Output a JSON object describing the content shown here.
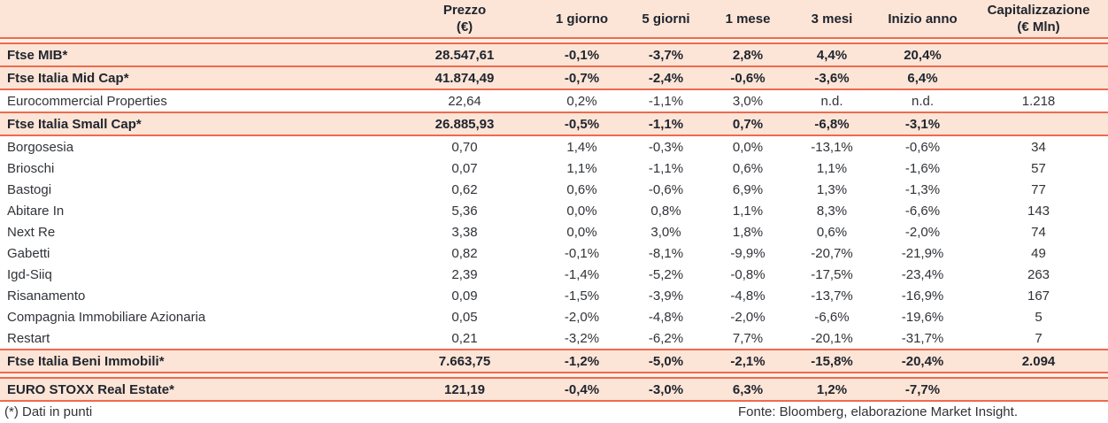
{
  "colors": {
    "accent_line": "#ef6a4e",
    "highlight_bg": "#fce5d7",
    "text": "#303338"
  },
  "header": {
    "name": "",
    "prezzo_line1": "Prezzo",
    "prezzo_line2": "(€)",
    "d1": "1 giorno",
    "d5": "5 giorni",
    "m1": "1 mese",
    "m3": "3 mesi",
    "ytd": "Inizio anno",
    "cap_line1": "Capitalizzazione",
    "cap_line2": "(€ Mln)"
  },
  "rows": [
    {
      "name": "Ftse MIB*",
      "highlight": true,
      "prezzo": "28.547,61",
      "d1": "-0,1%",
      "d5": "-3,7%",
      "m1": "2,8%",
      "m3": "4,4%",
      "ytd": "20,4%",
      "cap": ""
    },
    {
      "name": "Ftse Italia Mid Cap*",
      "highlight": true,
      "prezzo": "41.874,49",
      "d1": "-0,7%",
      "d5": "-2,4%",
      "m1": "-0,6%",
      "m3": "-3,6%",
      "ytd": "6,4%",
      "cap": ""
    },
    {
      "name": "Eurocommercial Properties",
      "highlight": false,
      "prezzo": "22,64",
      "d1": "0,2%",
      "d5": "-1,1%",
      "m1": "3,0%",
      "m3": "n.d.",
      "ytd": "n.d.",
      "cap": "1.218"
    },
    {
      "name": "Ftse Italia Small Cap*",
      "highlight": true,
      "prezzo": "26.885,93",
      "d1": "-0,5%",
      "d5": "-1,1%",
      "m1": "0,7%",
      "m3": "-6,8%",
      "ytd": "-3,1%",
      "cap": ""
    },
    {
      "name": "Borgosesia",
      "highlight": false,
      "prezzo": "0,70",
      "d1": "1,4%",
      "d5": "-0,3%",
      "m1": "0,0%",
      "m3": "-13,1%",
      "ytd": "-0,6%",
      "cap": "34"
    },
    {
      "name": "Brioschi",
      "highlight": false,
      "prezzo": "0,07",
      "d1": "1,1%",
      "d5": "-1,1%",
      "m1": "0,6%",
      "m3": "1,1%",
      "ytd": "-1,6%",
      "cap": "57"
    },
    {
      "name": "Bastogi",
      "highlight": false,
      "prezzo": "0,62",
      "d1": "0,6%",
      "d5": "-0,6%",
      "m1": "6,9%",
      "m3": "1,3%",
      "ytd": "-1,3%",
      "cap": "77"
    },
    {
      "name": "Abitare In",
      "highlight": false,
      "prezzo": "5,36",
      "d1": "0,0%",
      "d5": "0,8%",
      "m1": "1,1%",
      "m3": "8,3%",
      "ytd": "-6,6%",
      "cap": "143"
    },
    {
      "name": "Next Re",
      "highlight": false,
      "prezzo": "3,38",
      "d1": "0,0%",
      "d5": "3,0%",
      "m1": "1,8%",
      "m3": "0,6%",
      "ytd": "-2,0%",
      "cap": "74"
    },
    {
      "name": "Gabetti",
      "highlight": false,
      "prezzo": "0,82",
      "d1": "-0,1%",
      "d5": "-8,1%",
      "m1": "-9,9%",
      "m3": "-20,7%",
      "ytd": "-21,9%",
      "cap": "49"
    },
    {
      "name": "Igd-Siiq",
      "highlight": false,
      "prezzo": "2,39",
      "d1": "-1,4%",
      "d5": "-5,2%",
      "m1": "-0,8%",
      "m3": "-17,5%",
      "ytd": "-23,4%",
      "cap": "263"
    },
    {
      "name": "Risanamento",
      "highlight": false,
      "prezzo": "0,09",
      "d1": "-1,5%",
      "d5": "-3,9%",
      "m1": "-4,8%",
      "m3": "-13,7%",
      "ytd": "-16,9%",
      "cap": "167"
    },
    {
      "name": "Compagnia Immobiliare Azionaria",
      "highlight": false,
      "prezzo": "0,05",
      "d1": "-2,0%",
      "d5": "-4,8%",
      "m1": "-2,0%",
      "m3": "-6,6%",
      "ytd": "-19,6%",
      "cap": "5"
    },
    {
      "name": "Restart",
      "highlight": false,
      "prezzo": "0,21",
      "d1": "-3,2%",
      "d5": "-6,2%",
      "m1": "7,7%",
      "m3": "-20,1%",
      "ytd": "-31,7%",
      "cap": "7"
    },
    {
      "name": "Ftse Italia Beni Immobili*",
      "highlight": true,
      "prezzo": "7.663,75",
      "d1": "-1,2%",
      "d5": "-5,0%",
      "m1": "-2,1%",
      "m3": "-15,8%",
      "ytd": "-20,4%",
      "cap": "2.094"
    },
    {
      "name": "EURO STOXX Real Estate*",
      "highlight": true,
      "prezzo": "121,19",
      "d1": "-0,4%",
      "d5": "-3,0%",
      "m1": "6,3%",
      "m3": "1,2%",
      "ytd": "-7,7%",
      "cap": ""
    }
  ],
  "footer": {
    "note": "(*) Dati in punti",
    "source": "Fonte: Bloomberg, elaborazione Market Insight."
  }
}
